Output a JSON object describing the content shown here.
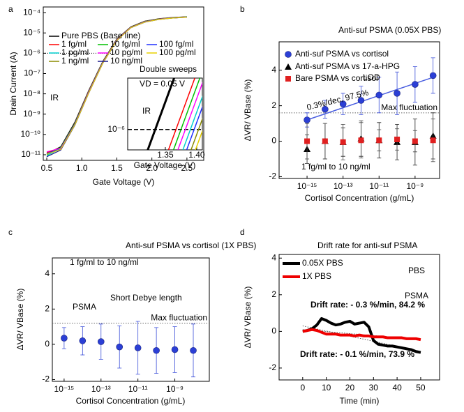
{
  "chart_data": [
    {
      "type": "line",
      "label": "a",
      "xlabel": "Gate Voltage (V)",
      "ylabel": "Drain Current (A)",
      "yscale": "log",
      "x": [
        0.5,
        0.7,
        0.9,
        1.1,
        1.3,
        1.5,
        1.7,
        1.9,
        2.1,
        2.3,
        2.5
      ],
      "xlim": [
        0.45,
        2.74
      ],
      "xticks": [
        0.5,
        {
          "value": 1,
          "label": "1.0"
        },
        1.5,
        {
          "value": 2,
          "label": "2.0"
        },
        2.5
      ],
      "ylim": [
        5.3e-12,
        0.00019
      ],
      "yticks": [
        {
          "value": 1e-11,
          "label": "10⁻¹¹"
        },
        {
          "value": 1e-10,
          "label": "10⁻¹⁰"
        },
        {
          "value": 1e-09,
          "label": "10⁻⁹"
        },
        {
          "value": 1e-08,
          "label": "10⁻⁸"
        },
        {
          "value": 1e-07,
          "label": "10⁻⁷"
        },
        {
          "value": 1e-06,
          "label": "10⁻⁶"
        },
        {
          "value": 1e-05,
          "label": "10⁻⁵"
        },
        {
          "value": 0.0001,
          "label": "10⁻⁴"
        }
      ],
      "reference": {
        "label": "IR",
        "value": 1e-06
      },
      "series": [
        {
          "name": "Pure PBS (Base line)",
          "color": "#000000",
          "values": [
            1.1e-11,
            2.5e-11,
            4e-10,
            1.5e-08,
            4e-07,
            5e-06,
            2e-05,
            3.8e-05,
            5e-05,
            5.8e-05,
            6.3e-05
          ]
        },
        {
          "name": "1 fg/ml",
          "color": "#ff0000",
          "values": [
            1.3e-11,
            2.2e-11,
            3.6e-10,
            1.4e-08,
            3.8e-07,
            4.8e-06,
            1.95e-05,
            3.7e-05,
            4.9e-05,
            5.7e-05,
            6.2e-05
          ]
        },
        {
          "name": "1 pg/ml",
          "color": "#00d0d0",
          "values": [
            9e-12,
            2e-11,
            3.3e-10,
            1.3e-08,
            3.6e-07,
            4.6e-06,
            1.9e-05,
            3.6e-05,
            4.8e-05,
            5.6e-05,
            6.1e-05
          ]
        },
        {
          "name": "1 ng/ml",
          "color": "#8a8a00",
          "values": [
            1.2e-11,
            1.8e-11,
            3e-10,
            1.2e-08,
            3.4e-07,
            4.4e-06,
            1.85e-05,
            3.5e-05,
            4.7e-05,
            5.5e-05,
            6e-05
          ]
        },
        {
          "name": "10 fg/ml",
          "color": "#00c000",
          "values": [
            1e-11,
            2.3e-11,
            3.5e-10,
            1.35e-08,
            3.7e-07,
            4.7e-06,
            1.92e-05,
            3.65e-05,
            4.85e-05,
            5.65e-05,
            6.15e-05
          ]
        },
        {
          "name": "10 pg/ml",
          "color": "#ff00ff",
          "values": [
            1.4e-11,
            2.1e-11,
            3.2e-10,
            1.25e-08,
            3.5e-07,
            4.5e-06,
            1.88e-05,
            3.55e-05,
            4.75e-05,
            5.55e-05,
            6.05e-05
          ]
        },
        {
          "name": "10 ng/ml",
          "color": "#1a1a8c",
          "values": [
            8e-12,
            1.7e-11,
            2.8e-10,
            1.1e-08,
            3.2e-07,
            4.2e-06,
            1.8e-05,
            3.4e-05,
            4.6e-05,
            5.4e-05,
            5.9e-05
          ]
        },
        {
          "name": "100 fg/ml",
          "color": "#2030ff",
          "values": [
            1.15e-11,
            1.9e-11,
            3.1e-10,
            1.15e-08,
            3.3e-07,
            4.3e-06,
            1.82e-05,
            3.45e-05,
            4.65e-05,
            5.45e-05,
            5.95e-05
          ]
        },
        {
          "name": "100 pg/ml",
          "color": "#e8d000",
          "values": [
            1.05e-11,
            1.85e-11,
            2.9e-10,
            1.12e-08,
            3.25e-07,
            4.25e-06,
            1.81e-05,
            3.42e-05,
            4.62e-05,
            5.42e-05,
            5.92e-05
          ]
        }
      ]
    },
    {
      "type": "line",
      "xlabel": "Gate Voltage (V)",
      "yscale": "log",
      "xlim": [
        1.29,
        1.409
      ],
      "xticks": [
        1.35,
        {
          "value": 1.4,
          "label": "1.40"
        }
      ],
      "ylim": [
        5.2e-07,
        5.2e-06
      ],
      "yticks": [
        {
          "value": 1e-06,
          "label": "10⁻⁶"
        }
      ],
      "hline": {
        "value": 1e-06
      },
      "annotations": [
        "Double sweeps",
        "VD = 0.05 V",
        "IR"
      ],
      "series": [
        {
          "color": "#000000",
          "width": 3,
          "x": [
            1.322,
            1.364
          ],
          "values": [
            5.2e-07,
            5.2e-06
          ]
        },
        {
          "color": "#ff0000",
          "width": 1.5,
          "x": [
            1.355,
            1.397
          ],
          "values": [
            5.2e-07,
            5.2e-06
          ]
        },
        {
          "color": "#00c000",
          "width": 1.5,
          "x": [
            1.363,
            1.405
          ],
          "values": [
            5.2e-07,
            5.2e-06
          ]
        },
        {
          "color": "#ff00ff",
          "width": 1.5,
          "x": [
            1.37,
            1.412
          ],
          "values": [
            5.2e-07,
            5.2e-06
          ]
        },
        {
          "color": "#00d0d0",
          "width": 1.5,
          "x": [
            1.378,
            1.42
          ],
          "values": [
            5.2e-07,
            5.2e-06
          ]
        },
        {
          "color": "#2030ff",
          "width": 1.5,
          "x": [
            1.384,
            1.426
          ],
          "values": [
            5.2e-07,
            5.2e-06
          ]
        },
        {
          "color": "#8a8a00",
          "width": 1.5,
          "x": [
            1.391,
            1.433
          ],
          "values": [
            5.2e-07,
            5.2e-06
          ]
        },
        {
          "color": "#e8d000",
          "width": 1.5,
          "x": [
            1.398,
            1.44
          ],
          "values": [
            5.2e-07,
            5.2e-06
          ]
        }
      ]
    },
    {
      "type": "scatter",
      "label": "b",
      "title": "Anti-suf PSMA (0.05X PBS)",
      "xlabel": "Cortisol Concentration (g/mL)",
      "ylabel": "ΔVR/ VBase (%)",
      "xscale": "log",
      "x": [
        1e-15,
        1e-14,
        1e-13,
        1e-12,
        1e-11,
        1e-10,
        1e-09,
        1e-08
      ],
      "xlim": [
        2.8e-17,
        2.3e-08
      ],
      "xticks": [
        {
          "value": 1e-15,
          "label": "10⁻¹⁵"
        },
        {
          "value": 1e-13,
          "label": "10⁻¹³"
        },
        {
          "value": 1e-11,
          "label": "10⁻¹¹"
        },
        {
          "value": 1e-09,
          "label": "10⁻⁹"
        }
      ],
      "ylim": [
        -2.1,
        5.6
      ],
      "yticks": [
        -2,
        0,
        2,
        4
      ],
      "hline": {
        "value": 1.6,
        "label": "Max fluctuation"
      },
      "fit": {
        "x": [
          1e-15,
          1e-08
        ],
        "values": [
          1.2,
          3.6
        ]
      },
      "annotations": [
        "0.3%/dec, 97.5%",
        "LOD",
        "1 fg/ml to 10 ng/ml"
      ],
      "series": [
        {
          "name": "Anti-suf PSMA vs cortisol",
          "color": "#2b3fd6",
          "marker": "circle",
          "values": [
            1.2,
            1.8,
            2.1,
            2.3,
            2.6,
            2.7,
            3.2,
            3.7
          ],
          "errors": [
            0.4,
            0.5,
            0.6,
            0.8,
            1.0,
            1.2,
            1.0,
            1.0
          ]
        },
        {
          "name": "Anti-suf PSMA vs 17-a-HPG",
          "color": "#000000",
          "marker": "triangle",
          "values": [
            -0.45,
            0,
            -0.05,
            0.15,
            0.05,
            -0.05,
            -0.05,
            0.3
          ],
          "errors": [
            0.8,
            1.0,
            0.8,
            1.0,
            1.0,
            1.0,
            1.3,
            1.3
          ]
        },
        {
          "name": "Bare PSMA vs cortisol",
          "color": "#e02020",
          "marker": "square",
          "values": [
            0,
            0,
            -0.05,
            0.05,
            0.05,
            0.1,
            0,
            0.05
          ],
          "errors": [
            1.0,
            1.0,
            1.0,
            1.0,
            0.6,
            0.6,
            0.6,
            1.2
          ]
        }
      ]
    },
    {
      "type": "scatter",
      "label": "c",
      "title": "Anti-suf PSMA vs cortisol (1X PBS)",
      "xlabel": "Cortisol Concentration (g/mL)",
      "ylabel": "ΔVR/ VBase (%)",
      "xscale": "log",
      "x": [
        1e-15,
        1e-14,
        1e-13,
        1e-12,
        1e-11,
        1e-10,
        1e-09,
        1e-08
      ],
      "xlim": [
        2.3e-16,
        7.4e-08
      ],
      "xticks": [
        {
          "value": 1e-15,
          "label": "10⁻¹⁵"
        },
        {
          "value": 1e-13,
          "label": "10⁻¹³"
        },
        {
          "value": 1e-11,
          "label": "10⁻¹¹"
        },
        {
          "value": 1e-09,
          "label": "10⁻⁹"
        }
      ],
      "ylim": [
        -2.1,
        4.9
      ],
      "yticks": [
        -2,
        0,
        2,
        4
      ],
      "hline": {
        "value": 1.2,
        "label": "Max fluctuation"
      },
      "annotations": [
        "1 fg/ml to 10 ng/ml",
        "Short Debye length",
        "PSMA"
      ],
      "series": [
        {
          "color": "#2b3fd6",
          "marker": "circle",
          "values": [
            0.35,
            0.2,
            0.15,
            -0.15,
            -0.2,
            -0.35,
            -0.3,
            -0.35
          ],
          "errors": [
            0.6,
            0.8,
            1.0,
            1.2,
            1.5,
            1.3,
            1.3,
            1.5
          ]
        }
      ]
    },
    {
      "type": "line",
      "label": "d",
      "title": "Drift rate for anti-suf PSMA",
      "xlabel": "Time (min)",
      "ylabel": "ΔVR/ VBase (%)",
      "x": [
        0,
        2,
        4,
        6,
        8,
        10,
        12,
        14,
        16,
        18,
        20,
        22,
        24,
        26,
        28,
        30,
        32,
        34,
        36,
        38,
        40,
        42,
        44,
        46,
        48,
        50
      ],
      "xlim": [
        -10,
        58
      ],
      "xticks": [
        0,
        10,
        20,
        30,
        40,
        50
      ],
      "ylim": [
        -2.65,
        4.2
      ],
      "yticks": [
        -2,
        0,
        2,
        4
      ],
      "annotations": [
        "Drift rate: - 0.3 %/min, 84.2 %",
        "Drift rate: - 0.1 %/min, 73.9 %",
        "PBS",
        "PSMA"
      ],
      "trends": [
        {
          "x": [
            0,
            50
          ],
          "values": [
            0.3,
            -1.1
          ]
        },
        {
          "x": [
            0,
            50
          ],
          "values": [
            0.1,
            -0.45
          ]
        }
      ],
      "series": [
        {
          "name": "0.05X PBS",
          "color": "#000000",
          "width": 4,
          "values": [
            0,
            0.05,
            0.15,
            0.35,
            0.7,
            0.6,
            0.45,
            0.35,
            0.4,
            0.5,
            0.55,
            0.4,
            0.45,
            0.5,
            0.25,
            -0.5,
            -0.7,
            -0.75,
            -0.8,
            -0.8,
            -0.85,
            -0.9,
            -0.95,
            -1.0,
            -1.1,
            -1.15
          ]
        },
        {
          "name": "1X PBS",
          "color": "#ee0000",
          "width": 4,
          "values": [
            0,
            0.05,
            0.1,
            0.05,
            -0.05,
            -0.15,
            -0.15,
            -0.15,
            -0.2,
            -0.2,
            -0.2,
            -0.25,
            -0.2,
            -0.25,
            -0.25,
            -0.3,
            -0.3,
            -0.3,
            -0.35,
            -0.35,
            -0.35,
            -0.35,
            -0.4,
            -0.4,
            -0.4,
            -0.45
          ]
        }
      ]
    }
  ]
}
